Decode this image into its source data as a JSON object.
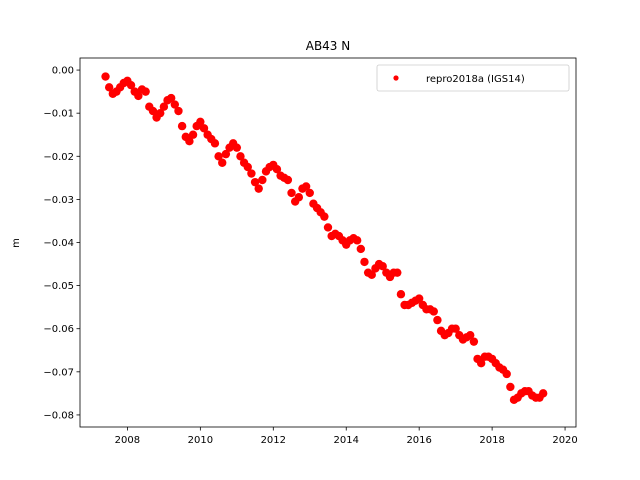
{
  "chart_data": {
    "type": "scatter",
    "title": "AB43 N",
    "xlabel": "",
    "ylabel": "m",
    "xlim": [
      2006.7,
      2020.3
    ],
    "ylim": [
      -0.0828,
      0.0028
    ],
    "xticks": [
      2008,
      2010,
      2012,
      2014,
      2016,
      2018,
      2020
    ],
    "xtick_labels": [
      "2008",
      "2010",
      "2012",
      "2014",
      "2016",
      "2018",
      "2020"
    ],
    "yticks": [
      0.0,
      -0.01,
      -0.02,
      -0.03,
      -0.04,
      -0.05,
      -0.06,
      -0.07,
      -0.08
    ],
    "ytick_labels": [
      "0.00",
      "−0.01",
      "−0.02",
      "−0.03",
      "−0.04",
      "−0.05",
      "−0.06",
      "−0.07",
      "−0.08"
    ],
    "grid": false,
    "legend_position": "top-right",
    "series": [
      {
        "name": "repro2018a (IGS14)",
        "color": "#ff0000",
        "marker": "dot",
        "x": [
          2007.4,
          2007.5,
          2007.6,
          2007.7,
          2007.8,
          2007.9,
          2008.0,
          2008.1,
          2008.2,
          2008.3,
          2008.4,
          2008.5,
          2008.6,
          2008.7,
          2008.8,
          2008.9,
          2009.0,
          2009.1,
          2009.2,
          2009.3,
          2009.4,
          2009.5,
          2009.6,
          2009.7,
          2009.8,
          2009.9,
          2010.0,
          2010.1,
          2010.2,
          2010.3,
          2010.4,
          2010.5,
          2010.6,
          2010.7,
          2010.8,
          2010.9,
          2011.0,
          2011.1,
          2011.2,
          2011.3,
          2011.4,
          2011.5,
          2011.6,
          2011.7,
          2011.8,
          2011.9,
          2012.0,
          2012.1,
          2012.2,
          2012.3,
          2012.4,
          2012.5,
          2012.6,
          2012.7,
          2012.8,
          2012.9,
          2013.0,
          2013.1,
          2013.2,
          2013.3,
          2013.4,
          2013.5,
          2013.6,
          2013.7,
          2013.8,
          2013.9,
          2014.0,
          2014.1,
          2014.2,
          2014.3,
          2014.4,
          2014.5,
          2014.6,
          2014.7,
          2014.8,
          2014.9,
          2015.0,
          2015.1,
          2015.2,
          2015.3,
          2015.4,
          2015.5,
          2015.6,
          2015.7,
          2015.8,
          2015.9,
          2016.0,
          2016.1,
          2016.2,
          2016.3,
          2016.4,
          2016.5,
          2016.6,
          2016.7,
          2016.8,
          2016.9,
          2017.0,
          2017.1,
          2017.2,
          2017.3,
          2017.4,
          2017.5,
          2017.6,
          2017.7,
          2017.8,
          2017.9,
          2018.0,
          2018.1,
          2018.2,
          2018.3,
          2018.4,
          2018.5,
          2018.6,
          2018.7,
          2018.8,
          2018.9,
          2019.0,
          2019.1,
          2019.2,
          2019.3,
          2019.4
        ],
        "y": [
          -0.0015,
          -0.004,
          -0.0055,
          -0.005,
          -0.004,
          -0.003,
          -0.0025,
          -0.0035,
          -0.005,
          -0.006,
          -0.0045,
          -0.005,
          -0.0085,
          -0.0095,
          -0.011,
          -0.01,
          -0.0085,
          -0.007,
          -0.0065,
          -0.008,
          -0.0095,
          -0.013,
          -0.0155,
          -0.0165,
          -0.015,
          -0.013,
          -0.012,
          -0.0135,
          -0.015,
          -0.016,
          -0.017,
          -0.02,
          -0.0215,
          -0.0195,
          -0.018,
          -0.017,
          -0.018,
          -0.02,
          -0.0215,
          -0.0225,
          -0.024,
          -0.026,
          -0.0275,
          -0.0255,
          -0.0235,
          -0.0225,
          -0.022,
          -0.023,
          -0.0245,
          -0.025,
          -0.0255,
          -0.0285,
          -0.0305,
          -0.0295,
          -0.0275,
          -0.027,
          -0.0285,
          -0.031,
          -0.032,
          -0.033,
          -0.034,
          -0.0365,
          -0.0385,
          -0.038,
          -0.0385,
          -0.0395,
          -0.0405,
          -0.0395,
          -0.039,
          -0.0395,
          -0.0415,
          -0.0445,
          -0.047,
          -0.0475,
          -0.046,
          -0.045,
          -0.0455,
          -0.047,
          -0.048,
          -0.047,
          -0.047,
          -0.052,
          -0.0545,
          -0.0545,
          -0.054,
          -0.0535,
          -0.053,
          -0.0545,
          -0.0555,
          -0.0555,
          -0.056,
          -0.058,
          -0.0605,
          -0.0615,
          -0.061,
          -0.06,
          -0.06,
          -0.0615,
          -0.0625,
          -0.062,
          -0.0615,
          -0.063,
          -0.067,
          -0.068,
          -0.0665,
          -0.0665,
          -0.067,
          -0.068,
          -0.069,
          -0.0695,
          -0.0705,
          -0.0735,
          -0.0765,
          -0.076,
          -0.075,
          -0.0745,
          -0.0745,
          -0.0755,
          -0.076,
          -0.076,
          -0.075
        ]
      }
    ]
  }
}
